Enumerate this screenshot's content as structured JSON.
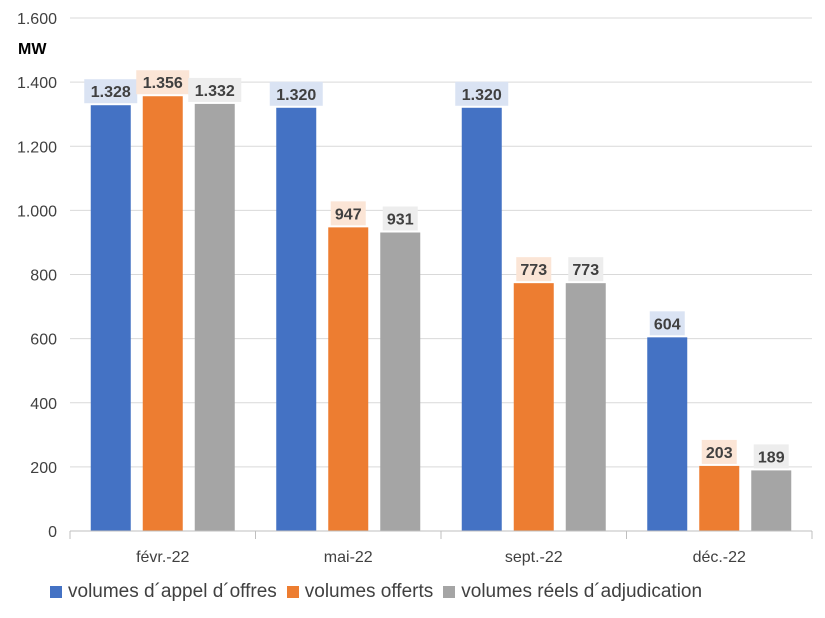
{
  "chart_data": {
    "type": "bar",
    "title": "",
    "ylabel": "MW",
    "xlabel": "",
    "categories": [
      "févr.-22",
      "mai-22",
      "sept.-22",
      "déc.-22"
    ],
    "series": [
      {
        "name": "volumes d´appel d´offres",
        "values": [
          1328,
          1320,
          1320,
          604
        ],
        "labels": [
          "1.328",
          "1.320",
          "1.320",
          "604"
        ],
        "color": "#4472C4",
        "label_bg": "#DAE3F3",
        "label_color": "#404040"
      },
      {
        "name": "volumes offerts",
        "values": [
          1356,
          947,
          773,
          203
        ],
        "labels": [
          "1.356",
          "947",
          "773",
          "203"
        ],
        "color": "#ED7D31",
        "label_bg": "#FBE5D6",
        "label_color": "#404040"
      },
      {
        "name": "volumes réels d´adjudication",
        "values": [
          1332,
          931,
          773,
          189
        ],
        "labels": [
          "1.332",
          "931",
          "773",
          "189"
        ],
        "color": "#A5A5A5",
        "label_bg": "#EDEDED",
        "label_color": "#404040"
      }
    ],
    "ylim": [
      0,
      1600
    ],
    "yticks": [
      0,
      200,
      400,
      600,
      800,
      1000,
      1200,
      1400,
      1600
    ],
    "ytick_labels": [
      "0",
      "200",
      "400",
      "600",
      "800",
      "1.000",
      "1.200",
      "1.400",
      "1.600"
    ],
    "grid": true,
    "legend_position": "bottom"
  }
}
